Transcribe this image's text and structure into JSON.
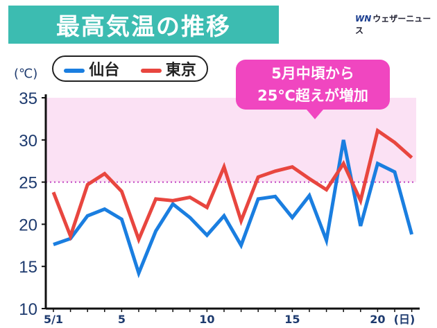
{
  "title": "最高気温の推移",
  "logo": {
    "mark": "WN",
    "text": "ウェザーニュース"
  },
  "callout": {
    "line1": "5月中頃から",
    "line2": "25℃超えが増加"
  },
  "chart_data": {
    "type": "line",
    "title": "最高気温の推移",
    "ylabel": "(℃)",
    "xlabel": "(日)",
    "ylim": [
      10,
      35
    ],
    "yticks": [
      10,
      15,
      20,
      25,
      30,
      35
    ],
    "x": [
      1,
      2,
      3,
      4,
      5,
      6,
      7,
      8,
      9,
      10,
      11,
      12,
      13,
      14,
      15,
      16,
      17,
      18,
      19,
      20,
      21,
      22
    ],
    "xtick_labels": [
      {
        "x": 1,
        "label": "5/1"
      },
      {
        "x": 5,
        "label": "5"
      },
      {
        "x": 10,
        "label": "10"
      },
      {
        "x": 15,
        "label": "15"
      },
      {
        "x": 20,
        "label": "20"
      }
    ],
    "threshold": 25,
    "highlight_band": [
      25,
      35
    ],
    "series": [
      {
        "name": "仙台",
        "color": "#1a7ee0",
        "values": [
          17.6,
          18.3,
          21.0,
          21.8,
          20.6,
          14.2,
          19.2,
          22.4,
          20.8,
          18.7,
          21.0,
          17.5,
          23.0,
          23.3,
          20.8,
          23.4,
          18.1,
          30.0,
          19.8,
          27.2,
          26.2,
          18.8
        ]
      },
      {
        "name": "東京",
        "color": "#e8463f",
        "values": [
          23.8,
          18.6,
          24.7,
          26.0,
          23.9,
          18.2,
          23.0,
          22.8,
          23.2,
          22.0,
          26.8,
          20.4,
          25.6,
          26.3,
          26.8,
          25.4,
          24.1,
          27.2,
          22.8,
          31.1,
          29.7,
          27.9
        ]
      }
    ],
    "legend": "top-left"
  }
}
